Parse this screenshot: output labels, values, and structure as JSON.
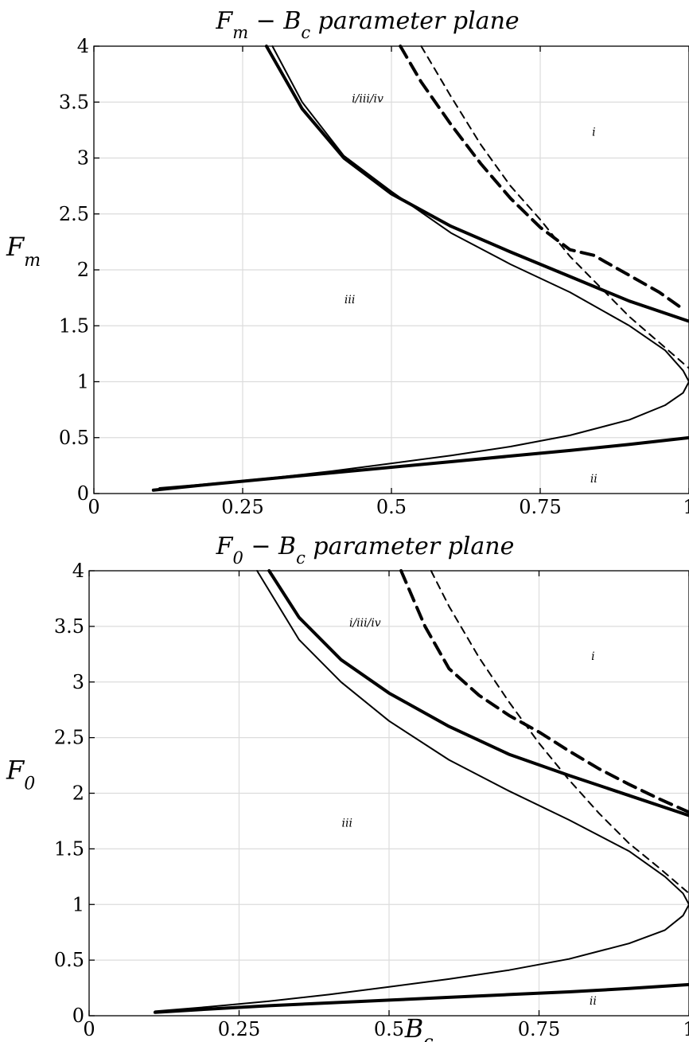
{
  "chart_data": [
    {
      "type": "line",
      "title": "F_m − B_c parameter plane",
      "title_main": "F",
      "title_sub": "m",
      "title_rest": " − B",
      "title_sub2": "c",
      "title_tail": " parameter plane",
      "xlabel": "",
      "ylabel_main": "F",
      "ylabel_sub": "m",
      "xlim": [
        0,
        1
      ],
      "ylim": [
        0,
        4
      ],
      "xticks": [
        0,
        0.25,
        0.5,
        0.75,
        1
      ],
      "xtick_labels": [
        "0",
        "0.25",
        "0.5",
        "0.75",
        "1"
      ],
      "yticks": [
        0,
        0.5,
        1,
        1.5,
        2,
        2.5,
        3,
        3.5,
        4
      ],
      "ytick_labels": [
        "0",
        "0.5",
        "1",
        "1.5",
        "2",
        "2.5",
        "3",
        "3.5",
        "4"
      ],
      "grid": true,
      "regions": [
        {
          "label": "i/iii/iv",
          "x": 0.46,
          "y": 3.5
        },
        {
          "label": "i",
          "x": 0.84,
          "y": 3.2
        },
        {
          "label": "iii",
          "x": 0.43,
          "y": 1.7
        },
        {
          "label": "ii",
          "x": 0.84,
          "y": 0.1
        }
      ],
      "series": [
        {
          "style": "thick-solid",
          "x": [
            0.29,
            0.35,
            0.42,
            0.5,
            0.6,
            0.7,
            0.8,
            0.9,
            1.0
          ],
          "y": [
            4.0,
            3.44,
            3.0,
            2.68,
            2.39,
            2.16,
            1.94,
            1.72,
            1.54
          ]
        },
        {
          "style": "thin-solid",
          "x": [
            0.3,
            0.35,
            0.42,
            0.5,
            0.6,
            0.7,
            0.8,
            0.9,
            0.96,
            0.99,
            1.0,
            0.99,
            0.96,
            0.9,
            0.8,
            0.7,
            0.6,
            0.5,
            0.4,
            0.3,
            0.2,
            0.11
          ],
          "y": [
            4.0,
            3.5,
            3.02,
            2.7,
            2.33,
            2.05,
            1.8,
            1.5,
            1.28,
            1.1,
            1.0,
            0.9,
            0.79,
            0.66,
            0.52,
            0.42,
            0.34,
            0.27,
            0.2,
            0.14,
            0.09,
            0.05
          ]
        },
        {
          "style": "thick-solid",
          "x": [
            0.1,
            0.2,
            0.3,
            0.4,
            0.5,
            0.6,
            0.7,
            0.8,
            0.9,
            1.0
          ],
          "y": [
            0.03,
            0.085,
            0.135,
            0.185,
            0.235,
            0.285,
            0.335,
            0.385,
            0.44,
            0.5
          ]
        },
        {
          "style": "thick-dashed",
          "x": [
            0.515,
            0.55,
            0.6,
            0.65,
            0.7,
            0.75,
            0.8,
            0.84,
            0.86,
            0.9,
            0.95,
            0.99
          ],
          "y": [
            4.0,
            3.68,
            3.3,
            2.95,
            2.64,
            2.38,
            2.18,
            2.13,
            2.07,
            1.95,
            1.8,
            1.65
          ]
        },
        {
          "style": "thin-dashed",
          "x": [
            0.55,
            0.6,
            0.65,
            0.7,
            0.75,
            0.8,
            0.85,
            0.9,
            0.95,
            1.0
          ],
          "y": [
            4.0,
            3.55,
            3.12,
            2.75,
            2.45,
            2.12,
            1.85,
            1.58,
            1.35,
            1.12
          ]
        }
      ]
    },
    {
      "type": "line",
      "title": "F_0 − B_c parameter plane",
      "title_main": "F",
      "title_sub": "0",
      "title_rest": " − B",
      "title_sub2": "c",
      "title_tail": " parameter plane",
      "xlabel_main": "B",
      "xlabel_sub": "c",
      "ylabel_main": "F",
      "ylabel_sub": "0",
      "xlim": [
        0,
        1
      ],
      "ylim": [
        0,
        4
      ],
      "xticks": [
        0,
        0.25,
        0.5,
        0.75,
        1
      ],
      "xtick_labels": [
        "0",
        "0.25",
        "0.5",
        "0.75",
        "1"
      ],
      "yticks": [
        0,
        0.5,
        1,
        1.5,
        2,
        2.5,
        3,
        3.5,
        4
      ],
      "ytick_labels": [
        "0",
        "0.5",
        "1",
        "1.5",
        "2",
        "2.5",
        "3",
        "3.5",
        "4"
      ],
      "grid": true,
      "regions": [
        {
          "label": "i/iii/iv",
          "x": 0.46,
          "y": 3.5
        },
        {
          "label": "i",
          "x": 0.84,
          "y": 3.2
        },
        {
          "label": "iii",
          "x": 0.43,
          "y": 1.7
        },
        {
          "label": "ii",
          "x": 0.84,
          "y": 0.1
        }
      ],
      "series": [
        {
          "style": "thick-solid",
          "x": [
            0.3,
            0.35,
            0.42,
            0.5,
            0.6,
            0.7,
            0.8,
            0.9,
            1.0
          ],
          "y": [
            4.0,
            3.58,
            3.2,
            2.9,
            2.6,
            2.35,
            2.16,
            1.98,
            1.8
          ]
        },
        {
          "style": "thin-solid",
          "x": [
            0.28,
            0.35,
            0.42,
            0.5,
            0.6,
            0.7,
            0.8,
            0.9,
            0.96,
            0.99,
            1.0,
            0.99,
            0.96,
            0.9,
            0.8,
            0.7,
            0.6,
            0.5,
            0.4,
            0.3,
            0.2,
            0.11
          ],
          "y": [
            4.0,
            3.38,
            3.0,
            2.65,
            2.3,
            2.02,
            1.76,
            1.48,
            1.25,
            1.1,
            1.0,
            0.9,
            0.77,
            0.65,
            0.51,
            0.41,
            0.33,
            0.26,
            0.19,
            0.13,
            0.08,
            0.04
          ]
        },
        {
          "style": "thick-solid",
          "x": [
            0.11,
            0.2,
            0.3,
            0.4,
            0.5,
            0.6,
            0.7,
            0.8,
            0.9,
            1.0
          ],
          "y": [
            0.03,
            0.06,
            0.09,
            0.115,
            0.14,
            0.165,
            0.19,
            0.215,
            0.245,
            0.28
          ]
        },
        {
          "style": "thick-dashed",
          "x": [
            0.52,
            0.56,
            0.6,
            0.65,
            0.7,
            0.75,
            0.8,
            0.85,
            0.9,
            0.95,
            1.0
          ],
          "y": [
            4.0,
            3.5,
            3.12,
            2.88,
            2.7,
            2.55,
            2.38,
            2.22,
            2.08,
            1.95,
            1.83
          ]
        },
        {
          "style": "thin-dashed",
          "x": [
            0.57,
            0.6,
            0.65,
            0.7,
            0.75,
            0.8,
            0.85,
            0.9,
            0.95,
            1.0
          ],
          "y": [
            4.0,
            3.68,
            3.22,
            2.82,
            2.45,
            2.12,
            1.82,
            1.55,
            1.33,
            1.1
          ]
        }
      ]
    }
  ]
}
